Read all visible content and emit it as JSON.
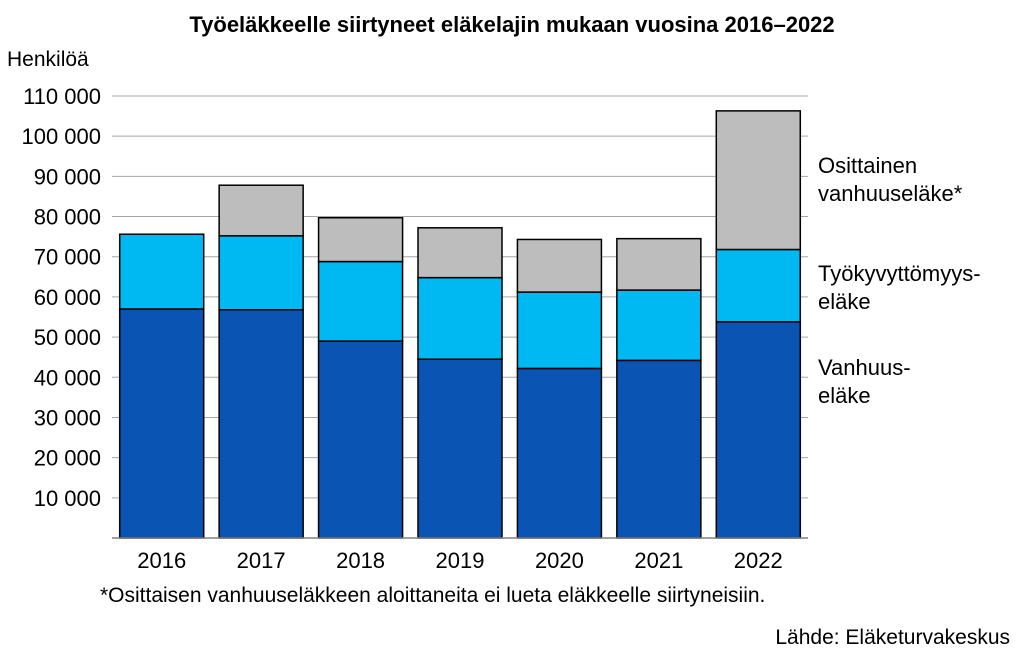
{
  "chart_data": {
    "type": "bar",
    "stacked": true,
    "title": "Työeläkkeelle siirtyneet eläkelajin mukaan vuosina 2016–2022",
    "ylabel": "Henkilöä",
    "xlabel": "",
    "ylim": [
      0,
      110000
    ],
    "yticks": [
      10000,
      20000,
      30000,
      40000,
      50000,
      60000,
      70000,
      80000,
      90000,
      100000,
      110000
    ],
    "ytick_labels": [
      "10 000",
      "20 000",
      "30 000",
      "40 000",
      "50 000",
      "60 000",
      "70 000",
      "80 000",
      "90 000",
      "100 000",
      "110 000"
    ],
    "grid": true,
    "legend_position": "right",
    "categories": [
      "2016",
      "2017",
      "2018",
      "2019",
      "2020",
      "2021",
      "2022"
    ],
    "series": [
      {
        "name": "Vanhuus-eläke",
        "color": "#0a54b4",
        "values": [
          57000,
          56800,
          49000,
          44500,
          42200,
          44200,
          53800
        ]
      },
      {
        "name": "Työkyvyttömyys-eläke",
        "color": "#00b8f2",
        "values": [
          18600,
          18400,
          19800,
          20300,
          19000,
          17500,
          18000
        ]
      },
      {
        "name": "Osittainen vanhuuseläke*",
        "color": "#bdbdbd",
        "values": [
          0,
          12600,
          10900,
          12400,
          13100,
          12800,
          34500
        ]
      }
    ]
  },
  "legend": {
    "item0": {
      "line1": "Osittainen",
      "line2": "vanhuuseläke*"
    },
    "item1": {
      "line1": "Työkyvyttömyys-",
      "line2": "eläke"
    },
    "item2": {
      "line1": "Vanhuus-",
      "line2": "eläke"
    }
  },
  "footnote": "*Osittaisen vanhuuseläkkeen aloittaneita ei lueta eläkkeelle siirtyneisiin.",
  "source": "Lähde: Eläketurvakeskus"
}
